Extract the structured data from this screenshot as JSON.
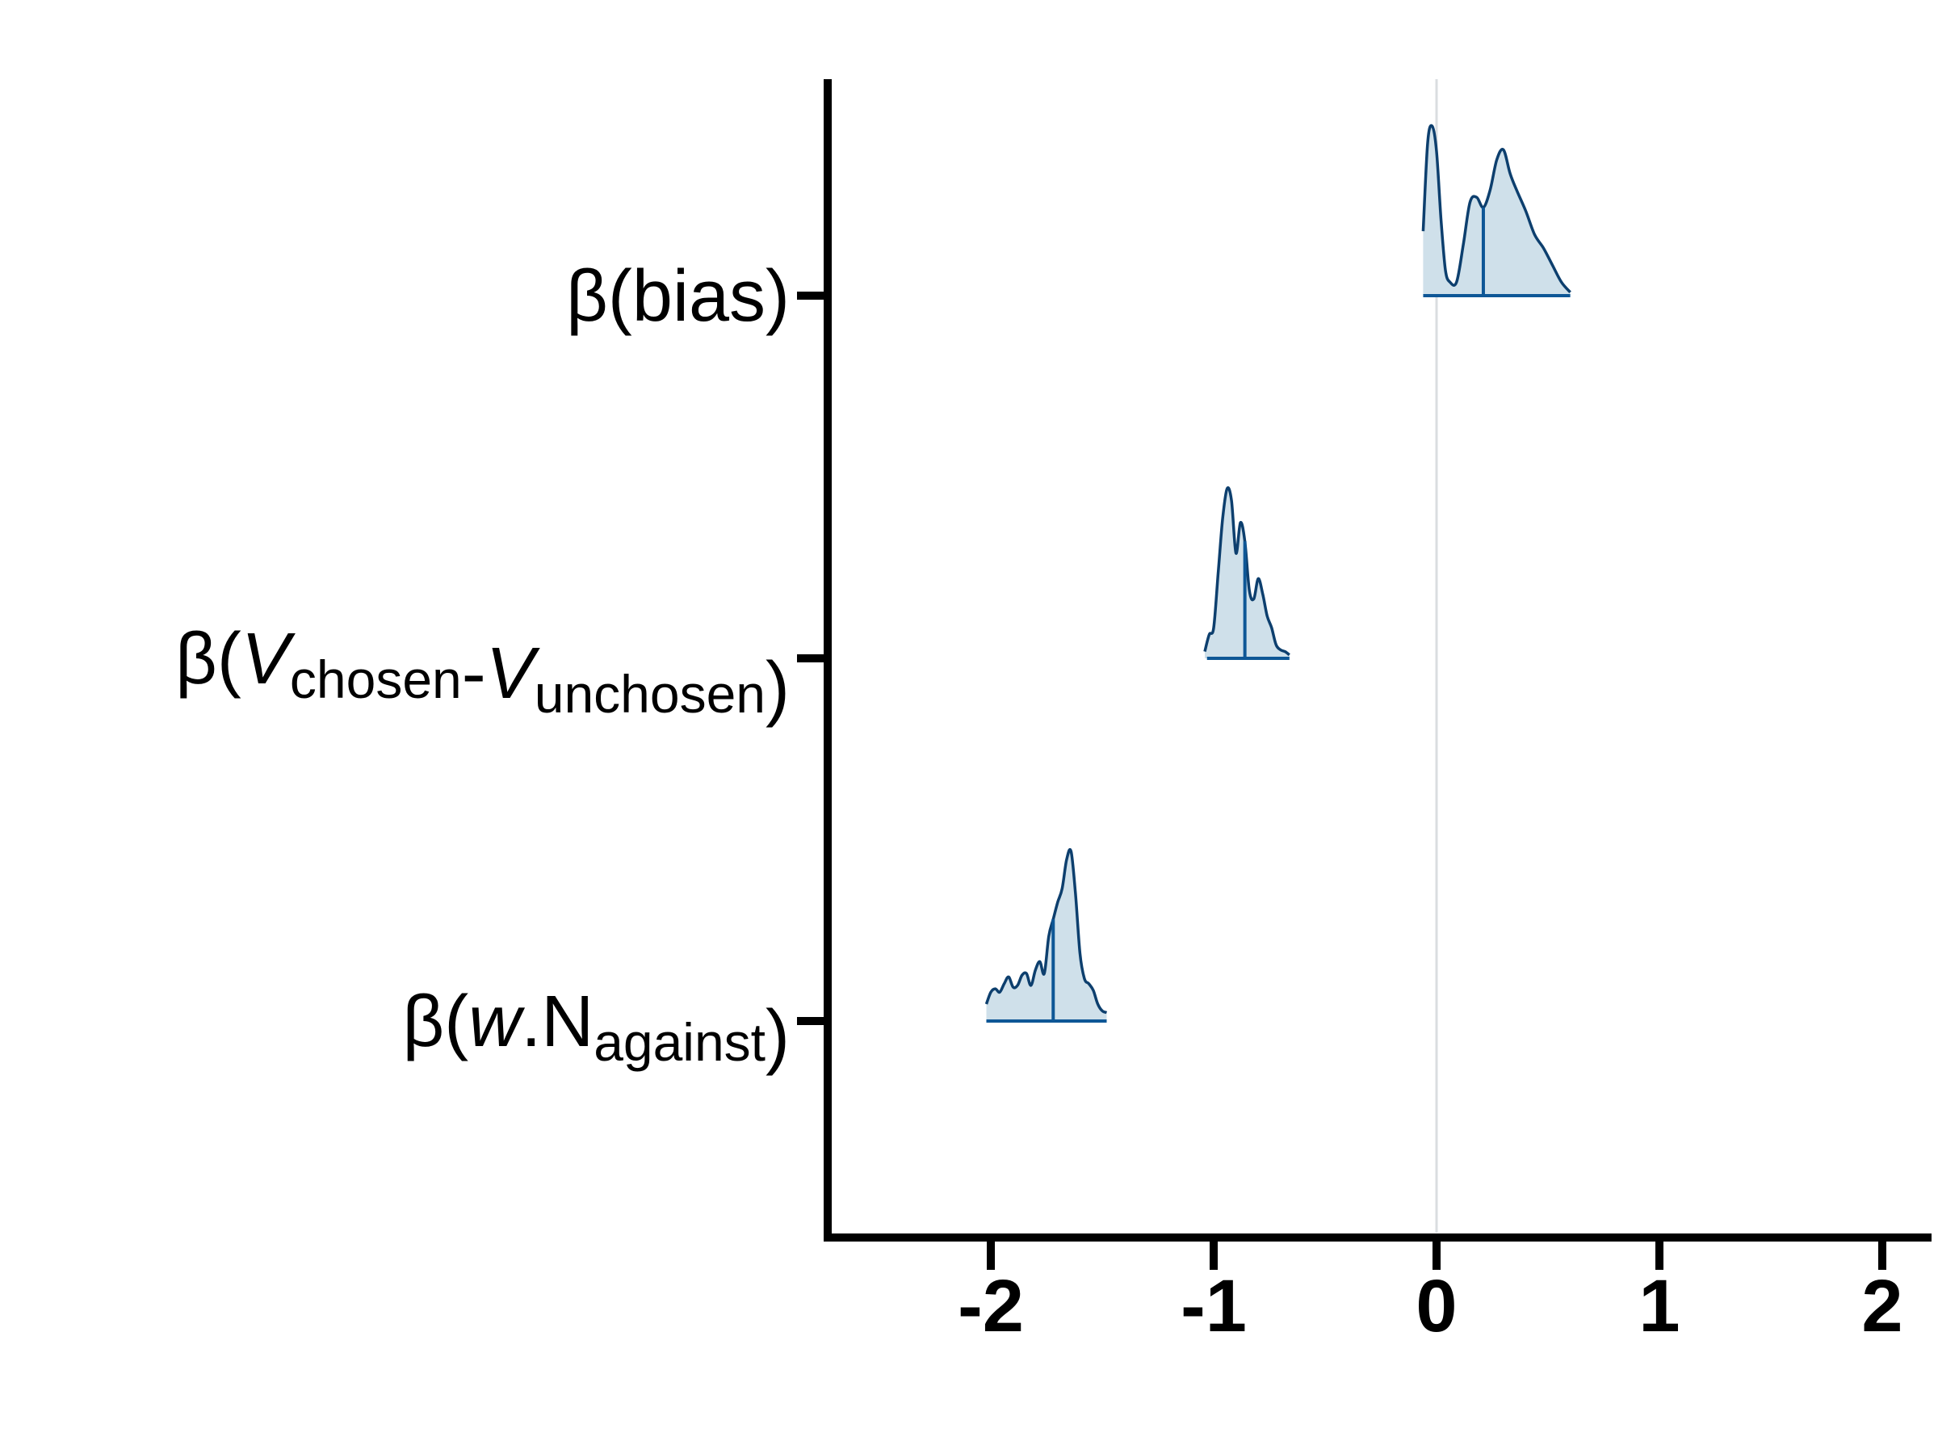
{
  "chart_data": {
    "type": "ridgeline",
    "xlim": [
      -2.72,
      2.2
    ],
    "xticks": [
      -2,
      -1,
      0,
      1,
      2
    ],
    "xtick_labels": [
      "-2",
      "-1",
      "0",
      "1",
      "2"
    ],
    "reference_line_x": 0,
    "colors": {
      "fill": "#cfe0ea",
      "line": "#0d3f6e",
      "median": "#0e5796",
      "reference": "#dadde0",
      "axis": "#000000"
    },
    "series": [
      {
        "label": {
          "pre": "β(",
          "parts": [
            [
              "bias",
              "n"
            ]
          ],
          "post": ")"
        },
        "median": 0.21,
        "interval": [
          -0.06,
          0.6
        ],
        "density_x": [
          -0.06,
          -0.04,
          -0.02,
          0.0,
          0.02,
          0.04,
          0.06,
          0.09,
          0.12,
          0.15,
          0.18,
          0.21,
          0.24,
          0.27,
          0.3,
          0.33,
          0.36,
          0.4,
          0.44,
          0.48,
          0.52,
          0.56,
          0.6
        ],
        "density_y": [
          0.38,
          0.9,
          1.0,
          0.85,
          0.45,
          0.15,
          0.08,
          0.08,
          0.3,
          0.55,
          0.58,
          0.52,
          0.62,
          0.8,
          0.86,
          0.72,
          0.62,
          0.5,
          0.36,
          0.28,
          0.18,
          0.08,
          0.02
        ]
      },
      {
        "label": {
          "pre": "β(",
          "parts": [
            [
              "V",
              "i"
            ],
            [
              "chosen",
              "s"
            ],
            [
              "-",
              "n"
            ],
            [
              "V",
              "i"
            ],
            [
              "unchosen",
              "s"
            ]
          ],
          "post": ")"
        },
        "median": -0.86,
        "interval": [
          -1.03,
          -0.66
        ],
        "density_x": [
          -1.04,
          -1.02,
          -1.0,
          -0.98,
          -0.96,
          -0.94,
          -0.92,
          -0.9,
          -0.88,
          -0.86,
          -0.84,
          -0.82,
          -0.8,
          -0.78,
          -0.76,
          -0.74,
          -0.72,
          -0.7,
          -0.68,
          -0.66
        ],
        "density_y": [
          0.04,
          0.14,
          0.18,
          0.5,
          0.82,
          1.0,
          0.93,
          0.62,
          0.8,
          0.69,
          0.4,
          0.35,
          0.47,
          0.38,
          0.25,
          0.18,
          0.08,
          0.05,
          0.04,
          0.02
        ]
      },
      {
        "label": {
          "pre": "β(",
          "parts": [
            [
              "w",
              "i"
            ],
            [
              ".N",
              "n"
            ],
            [
              "against",
              "s"
            ]
          ],
          "post": ")"
        },
        "median": -1.72,
        "interval": [
          -2.02,
          -1.48
        ],
        "density_x": [
          -2.02,
          -2.0,
          -1.98,
          -1.96,
          -1.94,
          -1.92,
          -1.9,
          -1.88,
          -1.86,
          -1.84,
          -1.82,
          -1.8,
          -1.78,
          -1.76,
          -1.74,
          -1.72,
          -1.7,
          -1.68,
          -1.66,
          -1.64,
          -1.62,
          -1.6,
          -1.58,
          -1.56,
          -1.54,
          -1.52,
          -1.5,
          -1.48
        ],
        "density_y": [
          0.1,
          0.17,
          0.19,
          0.17,
          0.22,
          0.26,
          0.2,
          0.21,
          0.27,
          0.28,
          0.21,
          0.3,
          0.35,
          0.28,
          0.5,
          0.6,
          0.7,
          0.78,
          0.95,
          1.0,
          0.75,
          0.4,
          0.25,
          0.22,
          0.18,
          0.1,
          0.06,
          0.05
        ]
      }
    ]
  }
}
